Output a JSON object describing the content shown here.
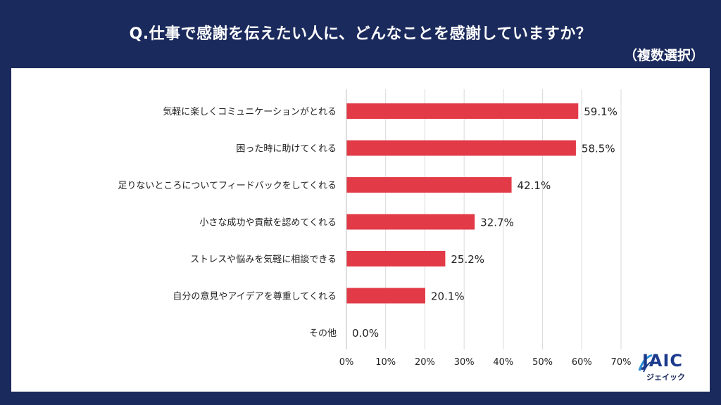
{
  "header": {
    "title": "Q.仕事で感謝を伝えたい人に、どんなことを感謝していますか？",
    "subtitle": "（複数選択）"
  },
  "logo": {
    "main": "JAIC",
    "sub": "ジェイック"
  },
  "colors": {
    "background": "#1b2a5c",
    "bar": "#e23a47",
    "gridline": "#d9d9d9",
    "panel": "#ffffff"
  },
  "chart_data": {
    "type": "bar",
    "orientation": "horizontal",
    "categories": [
      "気軽に楽しくコミュニケーションがとれる",
      "困った時に助けてくれる",
      "足りないところについてフィードバックをしてくれる",
      "小さな成功や貢献を認めてくれる",
      "ストレスや悩みを気軽に相談できる",
      "自分の意見やアイデアを尊重してくれる",
      "その他"
    ],
    "values": [
      59.1,
      58.5,
      42.1,
      32.7,
      25.2,
      20.1,
      0.0
    ],
    "data_labels": [
      "59.1%",
      "58.5%",
      "42.1%",
      "32.7%",
      "25.2%",
      "20.1%",
      "0.0%"
    ],
    "xlim": [
      0,
      70
    ],
    "xticks": [
      0,
      10,
      20,
      30,
      40,
      50,
      60,
      70
    ],
    "xtick_labels": [
      "0%",
      "10%",
      "20%",
      "30%",
      "40%",
      "50%",
      "60%",
      "70%"
    ],
    "grid": true
  }
}
